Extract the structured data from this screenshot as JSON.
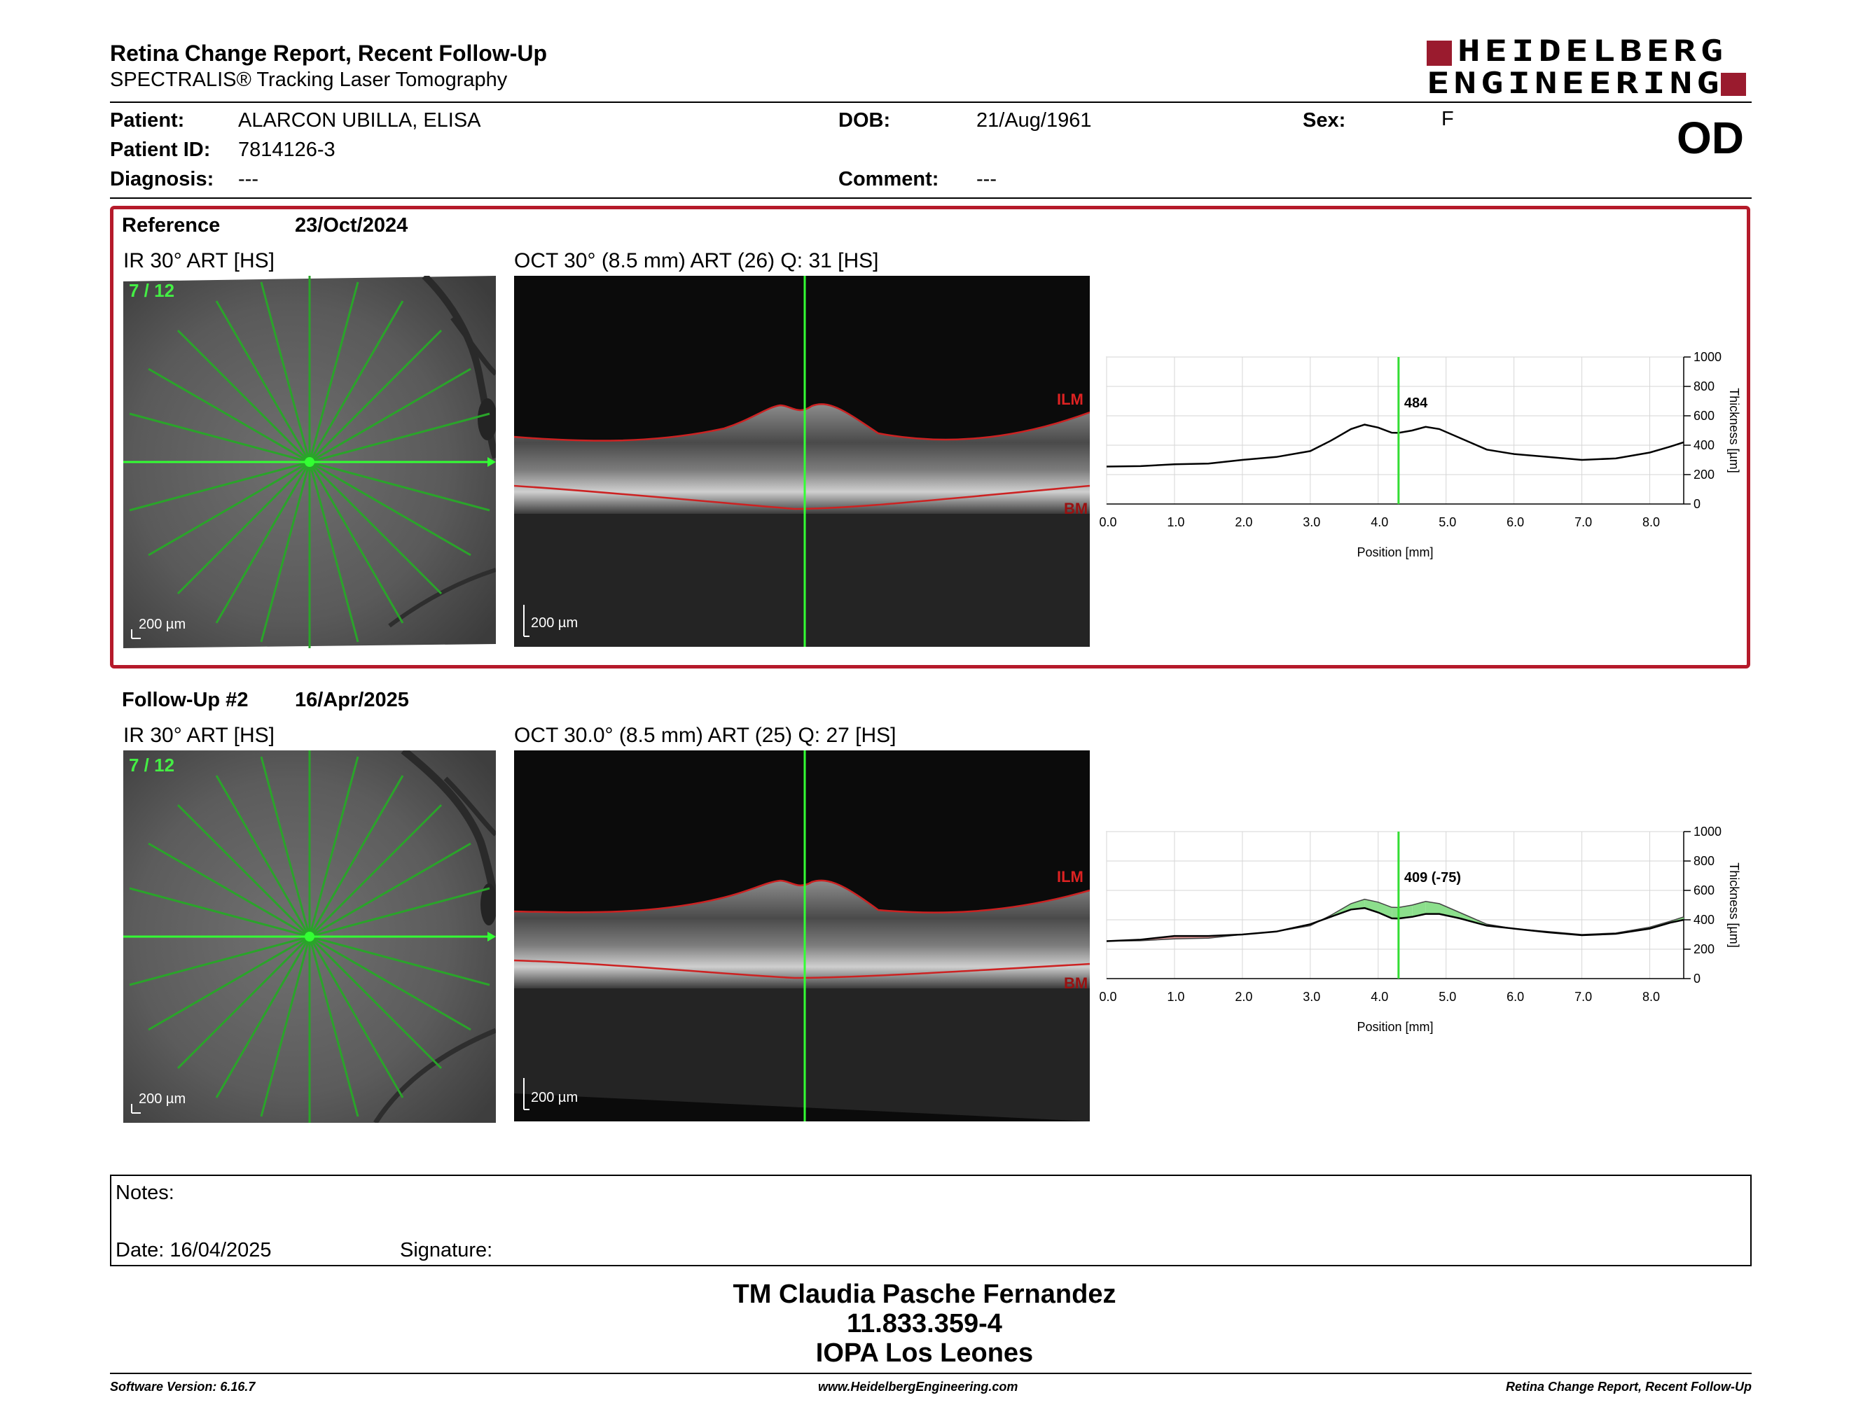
{
  "header": {
    "title": "Retina Change Report, Recent Follow-Up",
    "subtitle": "SPECTRALIS® Tracking Laser Tomography",
    "logo_line1": "HEIDELBERG",
    "logo_line2": "ENGINEERING",
    "eye": "OD"
  },
  "patient": {
    "name_label": "Patient:",
    "name": "ALARCON UBILLA, ELISA",
    "id_label": "Patient ID:",
    "id": "7814126-3",
    "diagnosis_label": "Diagnosis:",
    "diagnosis": "---",
    "dob_label": "DOB:",
    "dob": "21/Aug/1961",
    "comment_label": "Comment:",
    "comment": "---",
    "sex_label": "Sex:",
    "sex": "F"
  },
  "reference": {
    "label": "Reference",
    "date": "23/Oct/2024",
    "ir_caption": "IR 30° ART [HS]",
    "ir_counter": "7 / 12",
    "oct_caption": "OCT 30° (8.5 mm) ART (26) Q: 31 [HS]",
    "scale": "200 µm",
    "ilm": "ILM",
    "bm": "BM",
    "value_label": "484"
  },
  "followup": {
    "label": "Follow-Up #2",
    "date": "16/Apr/2025",
    "ir_caption": "IR 30° ART [HS]",
    "ir_counter": "7 / 12",
    "oct_caption": "OCT 30.0° (8.5 mm) ART (25) Q: 27 [HS]",
    "scale": "200 µm",
    "ilm": "ILM",
    "bm": "BM",
    "value_label": "409 (-75)"
  },
  "chart_data": [
    {
      "type": "line",
      "title": "",
      "xlabel": "Position [mm]",
      "ylabel": "Thickness [µm]",
      "xlim": [
        0,
        8.5
      ],
      "ylim": [
        0,
        1000
      ],
      "x_ticks": [
        "0.0",
        "1.0",
        "2.0",
        "3.0",
        "4.0",
        "5.0",
        "6.0",
        "7.0",
        "8.0"
      ],
      "y_ticks": [
        "0",
        "200",
        "400",
        "600",
        "800",
        "1000"
      ],
      "marker_x": 4.3,
      "marker_label": "484",
      "series": [
        {
          "x": [
            0,
            0.5,
            1,
            1.5,
            2,
            2.5,
            3,
            3.3,
            3.6,
            3.8,
            4.0,
            4.2,
            4.3,
            4.5,
            4.7,
            4.9,
            5.2,
            5.6,
            6.0,
            6.5,
            7.0,
            7.5,
            8.0,
            8.3,
            8.5
          ],
          "values": [
            255,
            258,
            270,
            275,
            300,
            320,
            360,
            430,
            510,
            540,
            520,
            485,
            484,
            500,
            525,
            510,
            450,
            370,
            340,
            320,
            300,
            310,
            350,
            390,
            420
          ]
        }
      ],
      "grid": true
    },
    {
      "type": "line",
      "title": "",
      "xlabel": "Position [mm]",
      "ylabel": "Thickness [µm]",
      "xlim": [
        0,
        8.5
      ],
      "ylim": [
        0,
        1000
      ],
      "x_ticks": [
        "0.0",
        "1.0",
        "2.0",
        "3.0",
        "4.0",
        "5.0",
        "6.0",
        "7.0",
        "8.0"
      ],
      "y_ticks": [
        "0",
        "200",
        "400",
        "600",
        "800",
        "1000"
      ],
      "marker_x": 4.3,
      "marker_label": "409 (-75)",
      "series": [
        {
          "x": [
            0,
            0.5,
            1,
            1.5,
            2,
            2.5,
            3,
            3.3,
            3.6,
            3.8,
            4.0,
            4.2,
            4.3,
            4.5,
            4.7,
            4.9,
            5.2,
            5.6,
            6.0,
            6.5,
            7.0,
            7.5,
            8.0,
            8.3,
            8.5
          ],
          "values": [
            255,
            265,
            290,
            290,
            300,
            320,
            370,
            420,
            470,
            480,
            450,
            410,
            409,
            420,
            440,
            440,
            410,
            360,
            340,
            315,
            295,
            305,
            340,
            380,
            400
          ]
        }
      ],
      "grid": true
    }
  ],
  "notes": {
    "notes_label": "Notes:",
    "date_label": "Date:",
    "date": "16/04/2025",
    "signature_label": "Signature:"
  },
  "signer": {
    "name": "TM Claudia Pasche Fernandez",
    "rut": "11.833.359-4",
    "place": "IOPA Los Leones"
  },
  "footer": {
    "software": "Software Version: 6.16.7",
    "website": "www.HeidelbergEngineering.com",
    "report": "Retina Change Report, Recent Follow-Up"
  }
}
